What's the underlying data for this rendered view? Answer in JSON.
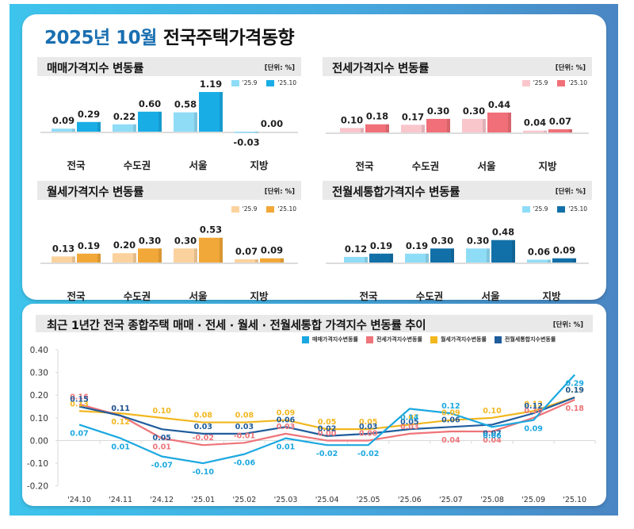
{
  "header": {
    "year_month": "2025년 10월",
    "title": "전국주택가격동향"
  },
  "chart_data": [
    {
      "type": "bar",
      "title": "매매가격지수 변동률",
      "unit": "[단위: %]",
      "categories": [
        "전국",
        "수도권",
        "서울",
        "지방"
      ],
      "series": [
        {
          "name": "'25.9",
          "values": [
            0.09,
            0.22,
            0.58,
            -0.03
          ],
          "color": "#8fdcf7"
        },
        {
          "name": "'25.10",
          "values": [
            0.29,
            0.6,
            1.19,
            0.0
          ],
          "color": "#19ade6"
        }
      ]
    },
    {
      "type": "bar",
      "title": "전세가격지수 변동률",
      "unit": "[단위: %]",
      "categories": [
        "전국",
        "수도권",
        "서울",
        "지방"
      ],
      "series": [
        {
          "name": "'25.9",
          "values": [
            0.1,
            0.17,
            0.3,
            0.04
          ],
          "color": "#f9c6cc"
        },
        {
          "name": "'25.10",
          "values": [
            0.18,
            0.3,
            0.44,
            0.07
          ],
          "color": "#f06f78"
        }
      ]
    },
    {
      "type": "bar",
      "title": "월세가격지수 변동률",
      "unit": "[단위: %]",
      "categories": [
        "전국",
        "수도권",
        "서울",
        "지방"
      ],
      "series": [
        {
          "name": "'25.9",
          "values": [
            0.13,
            0.2,
            0.3,
            0.07
          ],
          "color": "#fbd29e"
        },
        {
          "name": "'25.10",
          "values": [
            0.19,
            0.3,
            0.53,
            0.09
          ],
          "color": "#f2a838"
        }
      ]
    },
    {
      "type": "bar",
      "title": "전월세통합가격지수 변동률",
      "unit": "[단위: %]",
      "categories": [
        "전국",
        "수도권",
        "서울",
        "지방"
      ],
      "series": [
        {
          "name": "'25.9",
          "values": [
            0.12,
            0.19,
            0.3,
            0.06
          ],
          "color": "#8fdcf7"
        },
        {
          "name": "'25.10",
          "values": [
            0.19,
            0.3,
            0.48,
            0.09
          ],
          "color": "#1270a8"
        }
      ]
    },
    {
      "type": "line",
      "title": "최근 1년간 전국 종합주택 매매 · 전세 · 월세 · 전월세통합 가격지수 변동률 추이",
      "unit": "[단위: %]",
      "x": [
        "'24.10",
        "'24.11",
        "'24.12",
        "'25.01",
        "'25.02",
        "'25.03",
        "'25.04",
        "'25.05",
        "'25.06",
        "'25.07",
        "'25.08",
        "'25.09",
        "'25.10"
      ],
      "ylim": [
        -0.2,
        0.4
      ],
      "yticks": [
        0.4,
        0.3,
        0.2,
        0.1,
        0.0,
        -0.1,
        -0.2
      ],
      "ytick_labels": [
        "0.40",
        "0.30",
        "0.20",
        "0.10",
        "0.00",
        "-0.10",
        "-0.20"
      ],
      "grid": false,
      "legend_position": "top-right",
      "series": [
        {
          "name": "매매가격지수변동률",
          "color": "#1ba8e0",
          "values": [
            0.07,
            0.01,
            -0.07,
            -0.1,
            -0.06,
            0.01,
            -0.02,
            -0.02,
            0.14,
            0.12,
            0.06,
            0.09,
            0.29
          ]
        },
        {
          "name": "전세가격지수변동률",
          "color": "#ee7479",
          "values": [
            0.16,
            0.11,
            0.01,
            -0.02,
            -0.01,
            0.03,
            0.0,
            0.0,
            0.03,
            0.04,
            0.04,
            0.1,
            0.18
          ]
        },
        {
          "name": "월세가격지수변동률",
          "color": "#f2b71f",
          "values": [
            0.13,
            0.12,
            0.1,
            0.08,
            0.08,
            0.09,
            0.05,
            0.05,
            0.07,
            0.09,
            0.1,
            0.13,
            0.19
          ]
        },
        {
          "name": "전월세통합지수변동률",
          "color": "#1f5c9c",
          "values": [
            0.15,
            0.11,
            0.05,
            0.03,
            0.03,
            0.06,
            0.02,
            0.03,
            0.05,
            0.06,
            0.07,
            0.12,
            0.19
          ]
        }
      ]
    }
  ]
}
